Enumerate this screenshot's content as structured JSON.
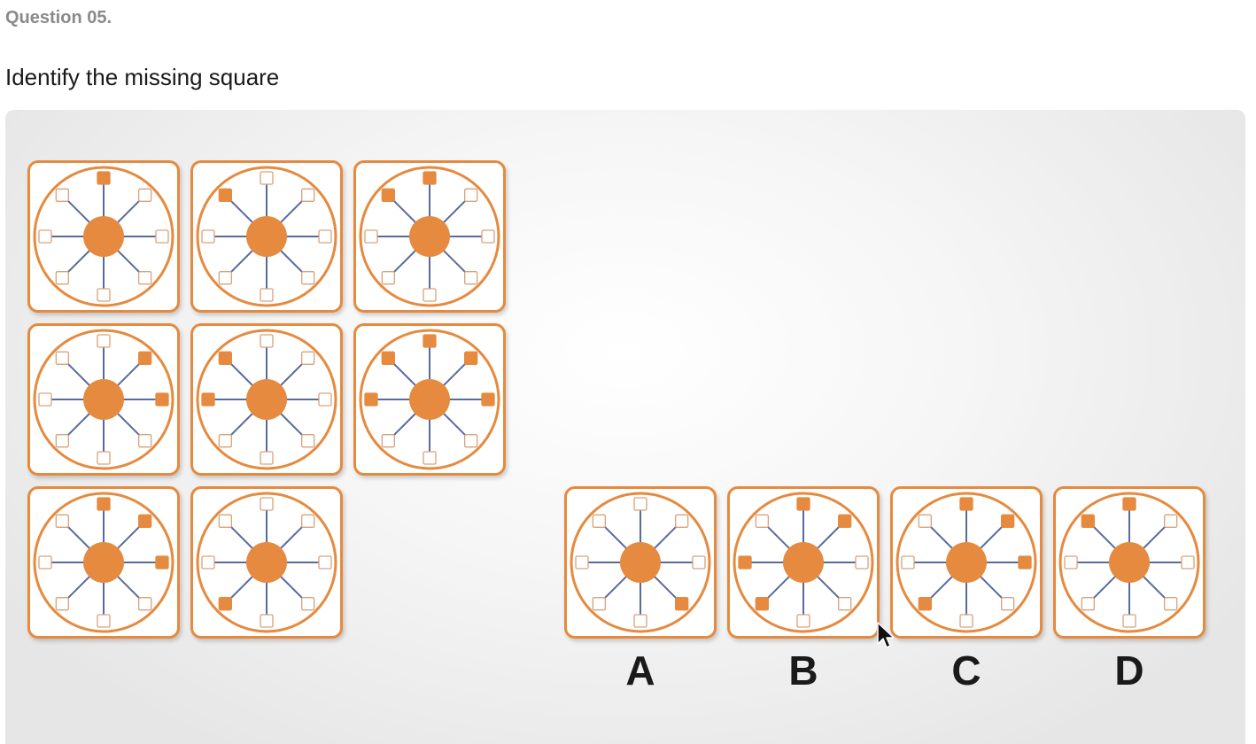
{
  "question_number": "Question 05.",
  "prompt": "Identify the missing square",
  "colors": {
    "accent": "#e58a3e",
    "spoke": "#5a6a9a",
    "tile_bg": "#ffffff"
  },
  "node_order": [
    "N",
    "NE",
    "E",
    "SE",
    "S",
    "SW",
    "W",
    "NW"
  ],
  "matrix": [
    [
      [
        "N"
      ],
      [
        "NW"
      ],
      [
        "N",
        "NW"
      ]
    ],
    [
      [
        "NE",
        "E"
      ],
      [
        "NW",
        "W"
      ],
      [
        "N",
        "NE",
        "E",
        "W",
        "NW"
      ]
    ],
    [
      [
        "N",
        "NE",
        "E"
      ],
      [
        "SW"
      ],
      null
    ]
  ],
  "options": [
    {
      "label": "A",
      "filled": [
        "SE"
      ]
    },
    {
      "label": "B",
      "filled": [
        "N",
        "NE",
        "W",
        "SW"
      ]
    },
    {
      "label": "C",
      "filled": [
        "N",
        "NE",
        "E",
        "SW"
      ]
    },
    {
      "label": "D",
      "filled": [
        "N",
        "NW"
      ]
    }
  ]
}
